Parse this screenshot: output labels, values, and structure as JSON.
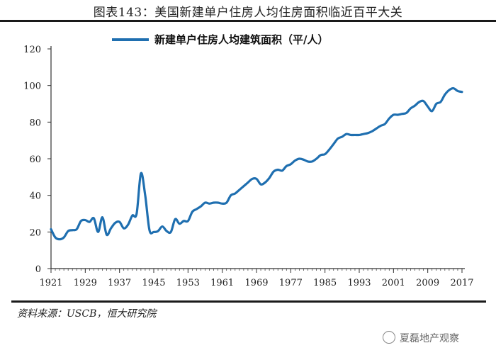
{
  "header": {
    "title": "图表143：美国新建单户住房人均住房面积临近百平大关"
  },
  "source": "资料来源：USCB，恒大研究院",
  "watermark": "夏磊地产观察",
  "colors": {
    "series": "#1f6fb0",
    "axis": "#333333",
    "text": "#222222"
  },
  "chart_data": {
    "type": "line",
    "title": "",
    "xlabel": "",
    "ylabel": "",
    "xlim": [
      1921,
      2017
    ],
    "ylim": [
      0,
      120
    ],
    "xticks": [
      1921,
      1929,
      1937,
      1945,
      1953,
      1961,
      1969,
      1977,
      1985,
      1993,
      2001,
      2009,
      2017
    ],
    "yticks": [
      0,
      20,
      40,
      60,
      80,
      100,
      120
    ],
    "grid": false,
    "legend": "top-center",
    "series": [
      {
        "name": "新建单户住房人均建筑面积（平/人）",
        "x": [
          1921,
          1922,
          1923,
          1924,
          1925,
          1926,
          1927,
          1928,
          1929,
          1930,
          1931,
          1932,
          1933,
          1934,
          1935,
          1936,
          1937,
          1938,
          1939,
          1940,
          1941,
          1942,
          1943,
          1944,
          1945,
          1946,
          1947,
          1948,
          1949,
          1950,
          1951,
          1952,
          1953,
          1954,
          1955,
          1956,
          1957,
          1958,
          1959,
          1960,
          1961,
          1962,
          1963,
          1964,
          1965,
          1966,
          1967,
          1968,
          1969,
          1970,
          1971,
          1972,
          1973,
          1974,
          1975,
          1976,
          1977,
          1978,
          1979,
          1980,
          1981,
          1982,
          1983,
          1984,
          1985,
          1986,
          1987,
          1988,
          1989,
          1990,
          1991,
          1992,
          1993,
          1994,
          1995,
          1996,
          1997,
          1998,
          1999,
          2000,
          2001,
          2002,
          2003,
          2004,
          2005,
          2006,
          2007,
          2008,
          2009,
          2010,
          2011,
          2012,
          2013,
          2014,
          2015,
          2016,
          2017
        ],
        "values": [
          21.5,
          17,
          16,
          17,
          20.5,
          21,
          21.5,
          26,
          26.5,
          25.5,
          27.5,
          20,
          28,
          18.5,
          22,
          25,
          25.5,
          22,
          24,
          29,
          30,
          52,
          40,
          21,
          20,
          20.5,
          23,
          20.5,
          20,
          27,
          24.5,
          26,
          26,
          31,
          32.5,
          34,
          36,
          35.5,
          36,
          36,
          35.5,
          36,
          40,
          41,
          43,
          45,
          47,
          49,
          49,
          46,
          47,
          49.5,
          53,
          54,
          53.5,
          56,
          57,
          59,
          60,
          59.5,
          58.5,
          58.5,
          60,
          62,
          62.5,
          65,
          68,
          71,
          72,
          73.5,
          73,
          73,
          73,
          73.5,
          74,
          75,
          76.5,
          78,
          79,
          82,
          84,
          84,
          84.5,
          85,
          87.5,
          89,
          91,
          91.5,
          88.5,
          86,
          90,
          91,
          95,
          97.5,
          98.5,
          97,
          96.5
        ]
      }
    ]
  }
}
